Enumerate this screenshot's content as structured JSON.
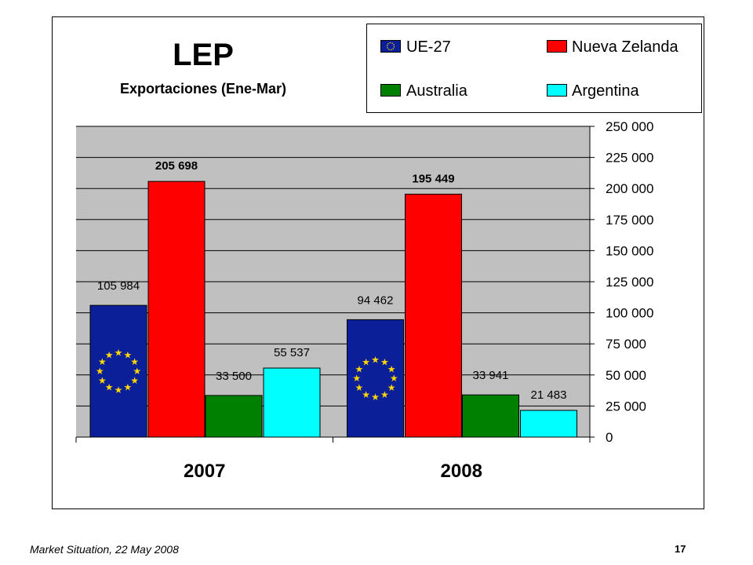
{
  "chart_data": {
    "type": "bar",
    "title": "LEP",
    "subtitle": "Exportaciones (Ene-Mar)",
    "xlabel": "",
    "ylabel": "",
    "categories": [
      "2007",
      "2008"
    ],
    "series": [
      {
        "name": "UE-27",
        "color": "#0b1f99",
        "values": [
          105984,
          94462
        ],
        "labels": [
          "105 984",
          "94 462"
        ],
        "label_bold": false
      },
      {
        "name": "Nueva Zelanda",
        "color": "#ff0000",
        "values": [
          205698,
          195449
        ],
        "labels": [
          "205 698",
          "195 449"
        ],
        "label_bold": true
      },
      {
        "name": "Australia",
        "color": "#008000",
        "values": [
          33500,
          33941
        ],
        "labels": [
          "33 500",
          "33 941"
        ],
        "label_bold": false
      },
      {
        "name": "Argentina",
        "color": "#00ffff",
        "values": [
          55537,
          21483
        ],
        "labels": [
          "55 537",
          "21 483"
        ],
        "label_bold": false
      }
    ],
    "ylim": [
      0,
      250000
    ],
    "yticks": [
      0,
      25000,
      50000,
      75000,
      100000,
      125000,
      150000,
      175000,
      200000,
      225000,
      250000
    ],
    "ytick_labels": [
      "0",
      "25 000",
      "50 000",
      "75 000",
      "100 000",
      "125 000",
      "150 000",
      "175 000",
      "200 000",
      "225 000",
      "250 000"
    ],
    "y_axis_side": "right",
    "grid": true,
    "plot_background": "#c0c0c0",
    "legend_position": "top-right"
  },
  "footer": {
    "source": "Market Situation, 22 May 2008",
    "page_number": "17"
  }
}
